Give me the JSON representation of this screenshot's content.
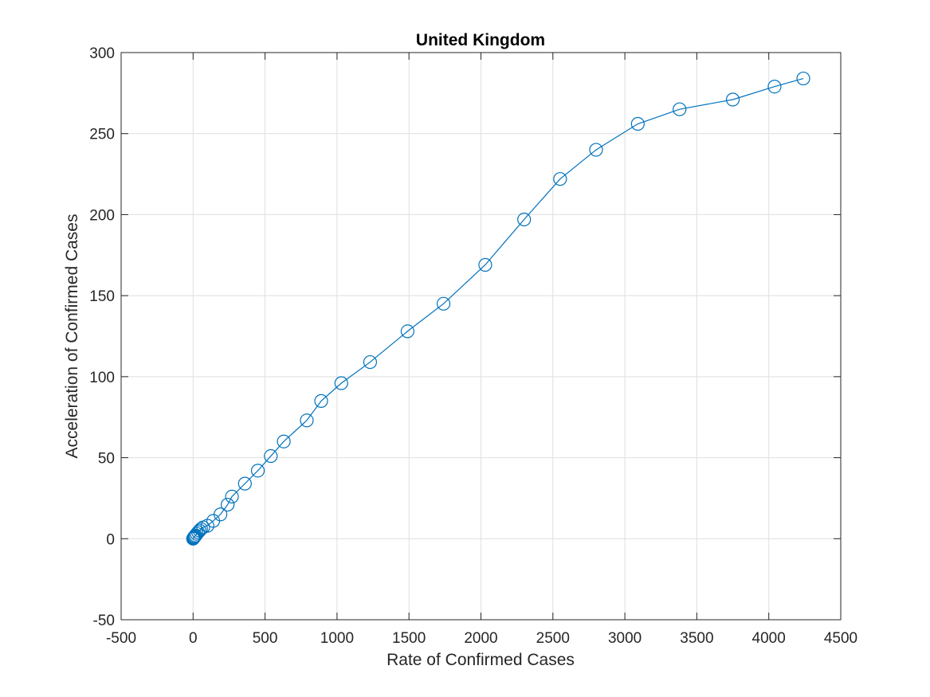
{
  "chart_data": {
    "type": "scatter",
    "title": "United Kingdom",
    "xlabel": "Rate of Confirmed Cases",
    "ylabel": "Acceleration of Confirmed Cases",
    "xlim": [
      -500,
      4500
    ],
    "ylim": [
      -50,
      300
    ],
    "xticks": [
      "-500",
      "0",
      "500",
      "1000",
      "1500",
      "2000",
      "2500",
      "3000",
      "3500",
      "4000",
      "4500"
    ],
    "yticks": [
      "-50",
      "0",
      "50",
      "100",
      "150",
      "200",
      "250",
      "300"
    ],
    "grid": true,
    "marker": "circle",
    "connected": true,
    "series_color": "#0072BD",
    "series": [
      {
        "x": [
          0,
          2,
          5,
          8,
          12,
          18,
          25,
          35,
          45,
          55,
          70,
          100,
          140,
          190,
          240,
          270,
          360,
          450,
          540,
          630,
          790,
          890,
          1030,
          1230,
          1490,
          1740,
          2030,
          2300,
          2550,
          2800,
          3090,
          3380,
          3750,
          4040,
          4240
        ],
        "y": [
          0,
          0.3,
          0.6,
          1,
          1.5,
          2,
          3,
          4,
          5,
          6,
          7,
          8,
          11,
          15,
          21,
          26,
          34,
          42,
          51,
          60,
          73,
          85,
          96,
          109,
          128,
          145,
          169,
          197,
          222,
          240,
          256,
          265,
          271,
          279,
          284
        ]
      }
    ]
  }
}
